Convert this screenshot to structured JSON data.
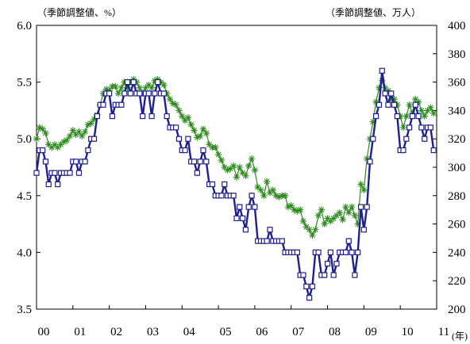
{
  "chart_data": {
    "type": "line",
    "left_axis_unit_label": "（季節調整値、%）",
    "right_axis_unit_label": "（季節調整値、万人）",
    "x_unit_label": "(年)",
    "x_ticks": [
      "00",
      "01",
      "02",
      "03",
      "04",
      "05",
      "06",
      "07",
      "08",
      "09",
      "10",
      "11"
    ],
    "x_range": [
      2000,
      2011
    ],
    "y_left_ticks": [
      "3.5",
      "4.0",
      "4.5",
      "5.0",
      "5.5",
      "6.0"
    ],
    "y_left_range": [
      3.5,
      6.0
    ],
    "y_right_ticks": [
      "200",
      "220",
      "240",
      "260",
      "280",
      "300",
      "320",
      "340",
      "360",
      "380",
      "400"
    ],
    "y_right_range": [
      200,
      400
    ],
    "grid": false,
    "series": [
      {
        "axis": "left",
        "color": "#1f1f8f",
        "marker": "square",
        "x": [
          2000.0,
          2000.083,
          2000.167,
          2000.25,
          2000.333,
          2000.417,
          2000.5,
          2000.583,
          2000.667,
          2000.75,
          2000.833,
          2000.917,
          2001.0,
          2001.083,
          2001.167,
          2001.25,
          2001.333,
          2001.417,
          2001.5,
          2001.583,
          2001.667,
          2001.75,
          2001.833,
          2001.917,
          2002.0,
          2002.083,
          2002.167,
          2002.25,
          2002.333,
          2002.417,
          2002.5,
          2002.583,
          2002.667,
          2002.75,
          2002.833,
          2002.917,
          2003.0,
          2003.083,
          2003.167,
          2003.25,
          2003.333,
          2003.417,
          2003.5,
          2003.583,
          2003.667,
          2003.75,
          2003.833,
          2003.917,
          2004.0,
          2004.083,
          2004.167,
          2004.25,
          2004.333,
          2004.417,
          2004.5,
          2004.583,
          2004.667,
          2004.75,
          2004.833,
          2004.917,
          2005.0,
          2005.083,
          2005.167,
          2005.25,
          2005.333,
          2005.417,
          2005.5,
          2005.583,
          2005.667,
          2005.75,
          2005.833,
          2005.917,
          2006.0,
          2006.083,
          2006.167,
          2006.25,
          2006.333,
          2006.417,
          2006.5,
          2006.583,
          2006.667,
          2006.75,
          2006.833,
          2006.917,
          2007.0,
          2007.083,
          2007.167,
          2007.25,
          2007.333,
          2007.417,
          2007.5,
          2007.583,
          2007.667,
          2007.75,
          2007.833,
          2007.917,
          2008.0,
          2008.083,
          2008.167,
          2008.25,
          2008.333,
          2008.417,
          2008.5,
          2008.583,
          2008.667,
          2008.75,
          2008.833,
          2008.917,
          2009.0,
          2009.083,
          2009.167,
          2009.25,
          2009.333,
          2009.417,
          2009.5,
          2009.583,
          2009.667,
          2009.75,
          2009.833,
          2009.917,
          2010.0,
          2010.083,
          2010.167,
          2010.25,
          2010.333,
          2010.417,
          2010.5,
          2010.583,
          2010.667,
          2010.75,
          2010.833,
          2010.917
        ],
        "values": [
          4.7,
          4.9,
          4.9,
          4.8,
          4.6,
          4.7,
          4.7,
          4.6,
          4.7,
          4.7,
          4.7,
          4.7,
          4.8,
          4.8,
          4.7,
          4.8,
          4.8,
          4.9,
          5.0,
          5.0,
          5.2,
          5.3,
          5.3,
          5.4,
          5.4,
          5.2,
          5.3,
          5.3,
          5.3,
          5.4,
          5.5,
          5.4,
          5.5,
          5.4,
          5.4,
          5.2,
          5.4,
          5.4,
          5.2,
          5.4,
          5.5,
          5.4,
          5.4,
          5.2,
          5.1,
          5.1,
          5.1,
          5.0,
          4.9,
          4.9,
          5.0,
          4.8,
          4.8,
          4.7,
          4.8,
          4.9,
          4.8,
          4.6,
          4.6,
          4.5,
          4.5,
          4.5,
          4.6,
          4.5,
          4.5,
          4.5,
          4.3,
          4.4,
          4.3,
          4.2,
          4.4,
          4.5,
          4.4,
          4.1,
          4.1,
          4.1,
          4.1,
          4.2,
          4.1,
          4.1,
          4.1,
          4.1,
          4.0,
          4.0,
          4.0,
          4.0,
          4.0,
          3.8,
          3.8,
          3.7,
          3.6,
          3.7,
          4.0,
          4.0,
          3.8,
          3.8,
          3.9,
          4.0,
          3.8,
          3.9,
          4.0,
          4.0,
          4.0,
          4.1,
          4.0,
          3.8,
          4.0,
          4.4,
          4.2,
          4.4,
          4.8,
          5.0,
          5.2,
          5.3,
          5.6,
          5.4,
          5.3,
          5.4,
          5.3,
          5.2,
          4.9,
          4.9,
          5.0,
          5.1,
          5.2,
          5.3,
          5.2,
          5.1,
          5.0,
          5.1,
          5.1,
          4.9
        ]
      },
      {
        "axis": "right",
        "color": "#2e8b1e",
        "marker": "star",
        "x": [
          2000.0,
          2000.083,
          2000.167,
          2000.25,
          2000.333,
          2000.417,
          2000.5,
          2000.583,
          2000.667,
          2000.75,
          2000.833,
          2000.917,
          2001.0,
          2001.083,
          2001.167,
          2001.25,
          2001.333,
          2001.417,
          2001.5,
          2001.583,
          2001.667,
          2001.75,
          2001.833,
          2001.917,
          2002.0,
          2002.083,
          2002.167,
          2002.25,
          2002.333,
          2002.417,
          2002.5,
          2002.583,
          2002.667,
          2002.75,
          2002.833,
          2002.917,
          2003.0,
          2003.083,
          2003.167,
          2003.25,
          2003.333,
          2003.417,
          2003.5,
          2003.583,
          2003.667,
          2003.75,
          2003.833,
          2003.917,
          2004.0,
          2004.083,
          2004.167,
          2004.25,
          2004.333,
          2004.417,
          2004.5,
          2004.583,
          2004.667,
          2004.75,
          2004.833,
          2004.917,
          2005.0,
          2005.083,
          2005.167,
          2005.25,
          2005.333,
          2005.417,
          2005.5,
          2005.583,
          2005.667,
          2005.75,
          2005.833,
          2005.917,
          2006.0,
          2006.083,
          2006.167,
          2006.25,
          2006.333,
          2006.417,
          2006.5,
          2006.583,
          2006.667,
          2006.75,
          2006.833,
          2006.917,
          2007.0,
          2007.083,
          2007.167,
          2007.25,
          2007.333,
          2007.417,
          2007.5,
          2007.583,
          2007.667,
          2007.75,
          2007.833,
          2007.917,
          2008.0,
          2008.083,
          2008.167,
          2008.25,
          2008.333,
          2008.417,
          2008.5,
          2008.583,
          2008.667,
          2008.75,
          2008.833,
          2008.917,
          2009.0,
          2009.083,
          2009.167,
          2009.25,
          2009.333,
          2009.417,
          2009.5,
          2009.583,
          2009.667,
          2009.75,
          2009.833,
          2009.917,
          2010.0,
          2010.083,
          2010.167,
          2010.25,
          2010.333,
          2010.417,
          2010.5,
          2010.583,
          2010.667,
          2010.75,
          2010.833,
          2010.917
        ],
        "values": [
          320,
          328,
          327,
          324,
          316,
          314,
          316,
          314,
          316,
          318,
          319,
          322,
          326,
          323,
          325,
          322,
          325,
          330,
          331,
          334,
          337,
          344,
          352,
          355,
          354,
          357,
          357,
          352,
          356,
          360,
          356,
          360,
          362,
          360,
          356,
          352,
          356,
          358,
          356,
          361,
          362,
          360,
          358,
          352,
          348,
          345,
          344,
          340,
          336,
          333,
          335,
          330,
          326,
          321,
          322,
          327,
          324,
          316,
          314,
          314,
          309,
          305,
          300,
          298,
          299,
          301,
          293,
          300,
          296,
          294,
          301,
          306,
          298,
          286,
          284,
          280,
          290,
          282,
          284,
          280,
          279,
          280,
          280,
          272,
          273,
          270,
          269,
          270,
          262,
          258,
          256,
          252,
          256,
          266,
          270,
          260,
          264,
          262,
          264,
          266,
          268,
          263,
          272,
          268,
          272,
          266,
          260,
          288,
          284,
          306,
          320,
          332,
          346,
          356,
          361,
          356,
          354,
          348,
          348,
          344,
          336,
          328,
          336,
          344,
          338,
          348,
          346,
          340,
          336,
          340,
          342,
          338
        ]
      }
    ]
  }
}
